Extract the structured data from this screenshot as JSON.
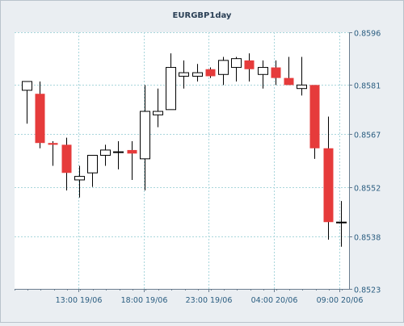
{
  "chart_data": {
    "type": "candlestick",
    "title": "EURGBP1day",
    "xlabel": "",
    "ylabel": "",
    "ylim": [
      0.8523,
      0.8596
    ],
    "y_ticks": [
      "0.8596",
      "0.8581",
      "0.8567",
      "0.8552",
      "0.8538",
      "0.8523"
    ],
    "x_ticks": [
      "13:00 19/06",
      "18:00 19/06",
      "23:00 19/06",
      "04:00 20/06",
      "09:00 20/06"
    ],
    "grid": true,
    "colors": {
      "bullish": "#ffffff",
      "bearish": "#e63b3b",
      "grid": "#a9d6dc",
      "axis": "#6b7d8f",
      "tick_label": "#2a5d80"
    },
    "candles": [
      {
        "o": 0.85795,
        "h": 0.8582,
        "l": 0.857,
        "c": 0.8582
      },
      {
        "o": 0.85785,
        "h": 0.8582,
        "l": 0.8563,
        "c": 0.85645
      },
      {
        "o": 0.85645,
        "h": 0.8565,
        "l": 0.8558,
        "c": 0.8564
      },
      {
        "o": 0.8564,
        "h": 0.8566,
        "l": 0.8551,
        "c": 0.8556
      },
      {
        "o": 0.8554,
        "h": 0.8558,
        "l": 0.8549,
        "c": 0.8555
      },
      {
        "o": 0.8556,
        "h": 0.8561,
        "l": 0.8552,
        "c": 0.8561
      },
      {
        "o": 0.8561,
        "h": 0.8564,
        "l": 0.8558,
        "c": 0.85625
      },
      {
        "o": 0.8562,
        "h": 0.8565,
        "l": 0.8557,
        "c": 0.8562
      },
      {
        "o": 0.85625,
        "h": 0.8565,
        "l": 0.8554,
        "c": 0.85615
      },
      {
        "o": 0.856,
        "h": 0.8581,
        "l": 0.8551,
        "c": 0.85735
      },
      {
        "o": 0.85725,
        "h": 0.858,
        "l": 0.8569,
        "c": 0.85735
      },
      {
        "o": 0.8574,
        "h": 0.859,
        "l": 0.8574,
        "c": 0.8586
      },
      {
        "o": 0.85835,
        "h": 0.8588,
        "l": 0.858,
        "c": 0.85845
      },
      {
        "o": 0.85835,
        "h": 0.8587,
        "l": 0.8582,
        "c": 0.85845
      },
      {
        "o": 0.85855,
        "h": 0.8586,
        "l": 0.8583,
        "c": 0.85835
      },
      {
        "o": 0.8584,
        "h": 0.8589,
        "l": 0.8581,
        "c": 0.8588
      },
      {
        "o": 0.8586,
        "h": 0.8589,
        "l": 0.8582,
        "c": 0.85885
      },
      {
        "o": 0.8588,
        "h": 0.859,
        "l": 0.8582,
        "c": 0.85855
      },
      {
        "o": 0.8584,
        "h": 0.8588,
        "l": 0.858,
        "c": 0.8586
      },
      {
        "o": 0.8586,
        "h": 0.8588,
        "l": 0.8581,
        "c": 0.8583
      },
      {
        "o": 0.8583,
        "h": 0.8589,
        "l": 0.8581,
        "c": 0.8581
      },
      {
        "o": 0.858,
        "h": 0.8589,
        "l": 0.8578,
        "c": 0.8581
      },
      {
        "o": 0.8581,
        "h": 0.8581,
        "l": 0.856,
        "c": 0.8563
      },
      {
        "o": 0.8563,
        "h": 0.8572,
        "l": 0.8537,
        "c": 0.8542
      },
      {
        "o": 0.8542,
        "h": 0.8548,
        "l": 0.8535,
        "c": 0.8542
      }
    ]
  }
}
